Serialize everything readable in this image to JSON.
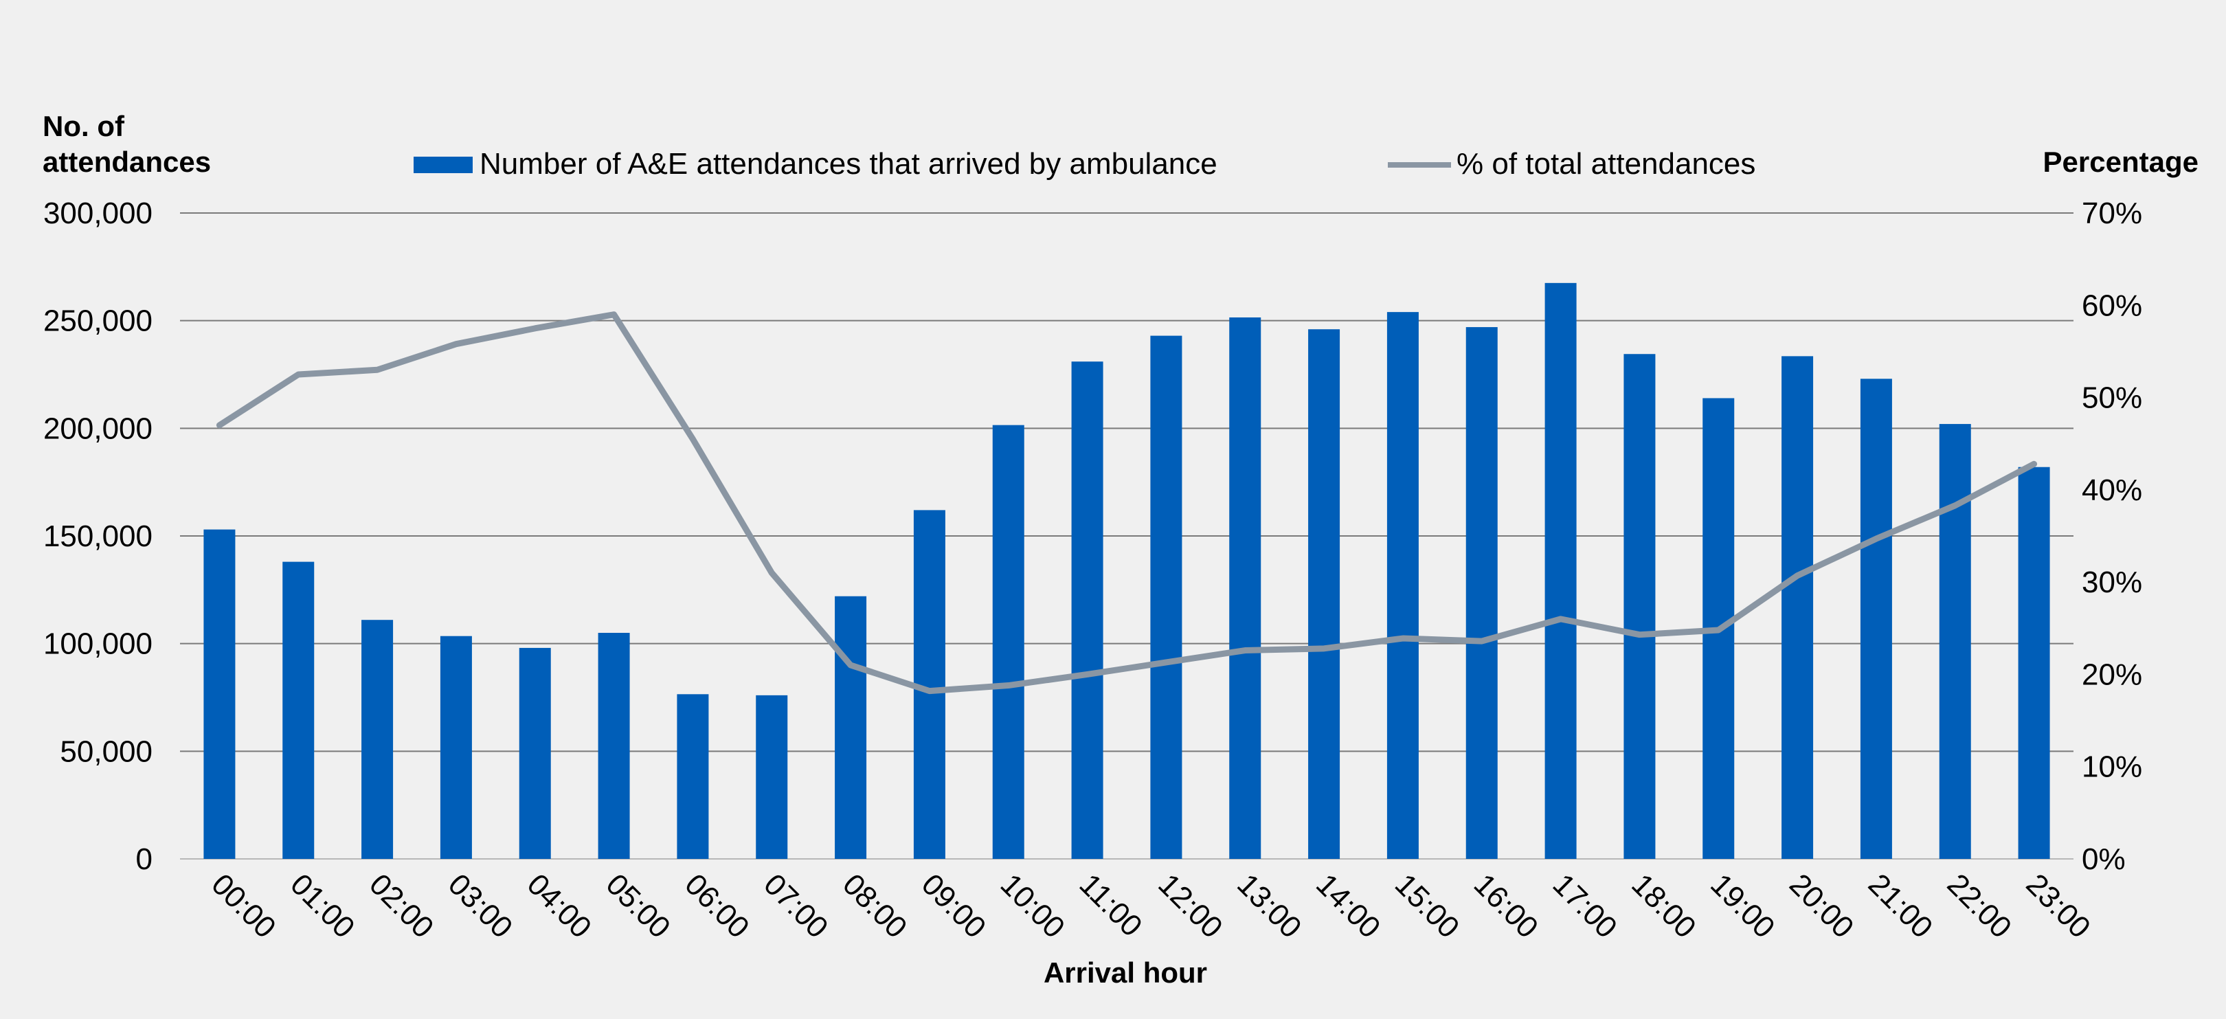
{
  "chart_data": {
    "type": "bar",
    "title": "",
    "xlabel": "Arrival hour",
    "ylabel_left": [
      "No. of",
      "attendances"
    ],
    "ylabel_right": "Percentage",
    "categories": [
      "00:00",
      "01:00",
      "02:00",
      "03:00",
      "04:00",
      "05:00",
      "06:00",
      "07:00",
      "08:00",
      "09:00",
      "10:00",
      "11:00",
      "12:00",
      "13:00",
      "14:00",
      "15:00",
      "16:00",
      "17:00",
      "18:00",
      "19:00",
      "20:00",
      "21:00",
      "22:00",
      "23:00"
    ],
    "ylim_left": [
      0,
      300000
    ],
    "ylim_right": [
      0,
      70
    ],
    "yticks_left": [
      "0",
      "50,000",
      "100,000",
      "150,000",
      "200,000",
      "250,000",
      "300,000"
    ],
    "yticks_right": [
      "0%",
      "10%",
      "20%",
      "30%",
      "40%",
      "50%",
      "60%",
      "70%"
    ],
    "grid": true,
    "legend_position": "top",
    "series": [
      {
        "name": "Number of A&E attendances that arrived by ambulance",
        "type": "bar",
        "axis": "left",
        "color": "#005EB8",
        "values": [
          153000,
          138000,
          111000,
          103500,
          98000,
          105000,
          76500,
          76000,
          122000,
          162000,
          201500,
          231000,
          243000,
          251500,
          246000,
          254000,
          247000,
          267500,
          234500,
          214000,
          233500,
          223000,
          202000,
          182000
        ]
      },
      {
        "name": "% of total attendances",
        "type": "line",
        "axis": "right",
        "color": "#8A96A3",
        "values": [
          47.0,
          52.5,
          53.0,
          55.8,
          57.5,
          59.0,
          45.5,
          31.0,
          21.0,
          18.2,
          18.8,
          20.0,
          21.3,
          22.6,
          22.8,
          23.9,
          23.6,
          26.0,
          24.3,
          24.8,
          30.7,
          34.7,
          38.3,
          42.8
        ]
      }
    ]
  }
}
